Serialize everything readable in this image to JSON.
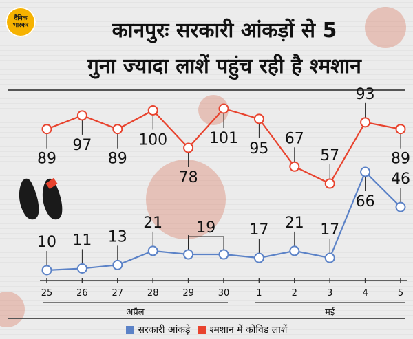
{
  "logo": {
    "line1": "दैनिक",
    "line2": "भास्कर"
  },
  "title_line1": "कानपुरः सरकारी आंकड़ों से 5",
  "title_line2": "गुना ज्यादा लाशें पहुंच रही है श्मशान",
  "chart_data": {
    "type": "line",
    "categories": [
      "25",
      "26",
      "27",
      "28",
      "29",
      "30",
      "1",
      "2",
      "3",
      "4",
      "5"
    ],
    "month_groups": [
      {
        "label": "अप्रैल",
        "from_index": 0,
        "to_index": 5
      },
      {
        "label": "मई",
        "from_index": 6,
        "to_index": 10
      }
    ],
    "series": [
      {
        "name": "श्मशान में कोविड लाशें",
        "color": "#e8432e",
        "values": [
          89,
          97,
          89,
          100,
          78,
          101,
          95,
          67,
          57,
          93,
          89
        ],
        "labels": [
          "89",
          "97",
          "89",
          "100",
          "78",
          "101",
          "95",
          "67",
          "57",
          "93",
          "89"
        ],
        "label_pos": [
          "below",
          "below",
          "below",
          "below",
          "below",
          "below",
          "below",
          "above",
          "above",
          "above",
          "below"
        ]
      },
      {
        "name": "सरकारी आंकड़े",
        "color": "#5b82c7",
        "values": [
          10,
          11,
          13,
          21,
          19,
          19,
          17,
          21,
          17,
          66,
          46
        ],
        "labels": [
          "10",
          "11",
          "13",
          "21",
          "19",
          "",
          "17",
          "21",
          "17",
          "66",
          "46"
        ],
        "label_pos": [
          "above",
          "above",
          "above",
          "above",
          "above",
          "above",
          "above",
          "above",
          "above",
          "below",
          "above"
        ],
        "bracket_29_30": true
      }
    ],
    "note": "Series plotted on independent visual bands; values shown as data labels."
  },
  "legend": {
    "items": [
      {
        "label": "सरकारी आंकड़े",
        "color": "#5b82c7"
      },
      {
        "label": "श्मशान में कोविड लाशें",
        "color": "#e8432e"
      }
    ]
  },
  "feet_tag_color": "#e8432e"
}
